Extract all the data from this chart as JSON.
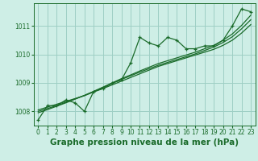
{
  "title": "Graphe pression niveau de la mer (hPa)",
  "background_color": "#ceeee6",
  "grid_color": "#9ecfc4",
  "line_color": "#1a6b2a",
  "x_values": [
    0,
    1,
    2,
    3,
    4,
    5,
    6,
    7,
    8,
    9,
    10,
    11,
    12,
    13,
    14,
    15,
    16,
    17,
    18,
    19,
    20,
    21,
    22,
    23
  ],
  "y_main": [
    1007.7,
    1008.2,
    1008.2,
    1008.4,
    1008.3,
    1008.0,
    1008.7,
    1008.8,
    1009.0,
    1009.1,
    1009.7,
    1010.6,
    1010.4,
    1010.3,
    1010.6,
    1010.5,
    1010.2,
    1010.2,
    1010.3,
    1010.3,
    1010.5,
    1011.0,
    1011.6,
    1011.5
  ],
  "y_line1": [
    1008.05,
    1008.15,
    1008.25,
    1008.35,
    1008.45,
    1008.55,
    1008.68,
    1008.8,
    1008.93,
    1009.06,
    1009.19,
    1009.32,
    1009.45,
    1009.58,
    1009.68,
    1009.78,
    1009.88,
    1009.98,
    1010.08,
    1010.18,
    1010.32,
    1010.5,
    1010.75,
    1011.05
  ],
  "y_line2": [
    1008.0,
    1008.1,
    1008.2,
    1008.32,
    1008.44,
    1008.56,
    1008.7,
    1008.84,
    1008.98,
    1009.12,
    1009.25,
    1009.38,
    1009.5,
    1009.62,
    1009.72,
    1009.82,
    1009.92,
    1010.02,
    1010.14,
    1010.26,
    1010.42,
    1010.62,
    1010.9,
    1011.22
  ],
  "y_line3": [
    1007.95,
    1008.06,
    1008.18,
    1008.3,
    1008.43,
    1008.56,
    1008.7,
    1008.85,
    1009.0,
    1009.15,
    1009.28,
    1009.42,
    1009.55,
    1009.68,
    1009.78,
    1009.88,
    1009.98,
    1010.08,
    1010.2,
    1010.32,
    1010.5,
    1010.72,
    1011.02,
    1011.38
  ],
  "ylim": [
    1007.5,
    1011.8
  ],
  "yticks": [
    1008,
    1009,
    1010,
    1011
  ],
  "xlim": [
    -0.5,
    23.5
  ],
  "xticks": [
    0,
    1,
    2,
    3,
    4,
    5,
    6,
    7,
    8,
    9,
    10,
    11,
    12,
    13,
    14,
    15,
    16,
    17,
    18,
    19,
    20,
    21,
    22,
    23
  ],
  "title_fontsize": 7.5,
  "tick_fontsize": 5.5
}
